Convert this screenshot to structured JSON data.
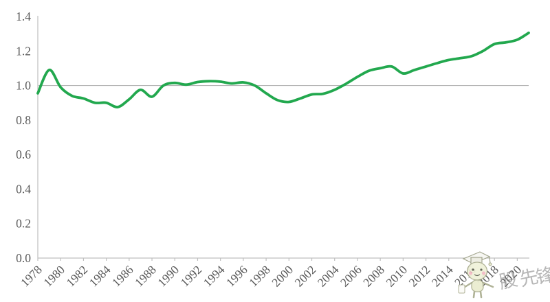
{
  "chart_data": {
    "type": "line",
    "title": "",
    "xlabel": "",
    "ylabel": "",
    "x": [
      1978,
      1979,
      1980,
      1981,
      1982,
      1983,
      1984,
      1985,
      1986,
      1987,
      1988,
      1989,
      1990,
      1991,
      1992,
      1993,
      1994,
      1995,
      1996,
      1997,
      1998,
      1999,
      2000,
      2001,
      2002,
      2003,
      2004,
      2005,
      2006,
      2007,
      2008,
      2009,
      2010,
      2011,
      2012,
      2013,
      2014,
      2015,
      2016,
      2017,
      2018,
      2019,
      2020,
      2021
    ],
    "series": [
      {
        "name": "ratio-line",
        "values": [
          0.955,
          1.09,
          0.99,
          0.94,
          0.925,
          0.9,
          0.9,
          0.875,
          0.92,
          0.975,
          0.935,
          1.0,
          1.015,
          1.005,
          1.02,
          1.025,
          1.022,
          1.012,
          1.018,
          1.0,
          0.955,
          0.915,
          0.905,
          0.925,
          0.948,
          0.952,
          0.975,
          1.01,
          1.05,
          1.085,
          1.1,
          1.11,
          1.07,
          1.09,
          1.11,
          1.13,
          1.148,
          1.158,
          1.17,
          1.2,
          1.24,
          1.25,
          1.265,
          1.305
        ]
      }
    ],
    "x_tick_labels": [
      "1978",
      "1980",
      "1982",
      "1984",
      "1986",
      "1988",
      "1990",
      "1992",
      "1994",
      "1996",
      "1998",
      "2000",
      "2002",
      "2004",
      "2006",
      "2008",
      "2010",
      "2012",
      "2014",
      "2016",
      "2018",
      "2020"
    ],
    "y_tick_labels": [
      "0.0",
      "0.2",
      "0.4",
      "0.6",
      "0.8",
      "1.0",
      "1.2",
      "1.4"
    ],
    "ylim": [
      0,
      1.4
    ],
    "reference_line": 1.0,
    "legend_position": "none",
    "grid": "single horizontal reference line at y=1.0",
    "line_color": "#22A84E",
    "axis_color": "#BFBFBF",
    "gridline_color": "#A6A6A6",
    "label_color": "#595959"
  },
  "watermark": {
    "mascot": "graduate-mascot-icon",
    "characters": [
      "股",
      "先",
      "锋"
    ]
  }
}
